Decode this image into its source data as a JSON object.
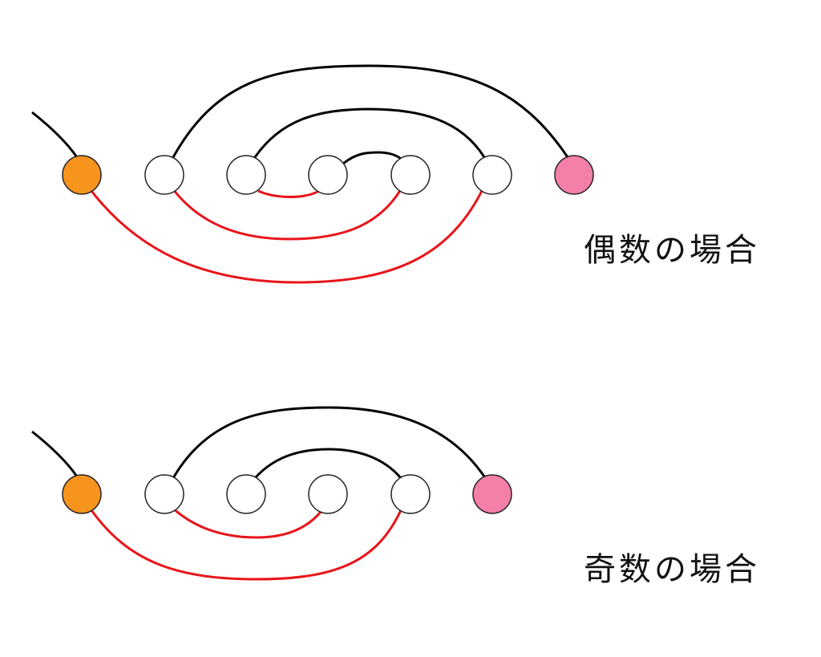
{
  "panels": [
    {
      "id": "even",
      "label": "偶数の場合",
      "nodes": [
        {
          "kind": "start"
        },
        {
          "kind": "mid"
        },
        {
          "kind": "mid"
        },
        {
          "kind": "mid"
        },
        {
          "kind": "mid"
        },
        {
          "kind": "mid"
        },
        {
          "kind": "end"
        }
      ],
      "black_arcs": [
        [
          1,
          6
        ],
        [
          2,
          5
        ],
        [
          3,
          4
        ]
      ],
      "red_arcs": [
        [
          0,
          5
        ],
        [
          1,
          4
        ],
        [
          2,
          3
        ]
      ]
    },
    {
      "id": "odd",
      "label": "奇数の場合",
      "nodes": [
        {
          "kind": "start"
        },
        {
          "kind": "mid"
        },
        {
          "kind": "mid"
        },
        {
          "kind": "mid"
        },
        {
          "kind": "mid"
        },
        {
          "kind": "end"
        }
      ],
      "black_arcs": [
        [
          1,
          5
        ],
        [
          2,
          4
        ]
      ],
      "red_arcs": [
        [
          0,
          4
        ],
        [
          1,
          3
        ]
      ]
    }
  ],
  "colors": {
    "start_node": "#f7941d",
    "end_node": "#f47fa8",
    "mid_node": "#ffffff",
    "black_line": "#000000",
    "red_line": "#e8141a",
    "node_stroke": "#222222"
  }
}
